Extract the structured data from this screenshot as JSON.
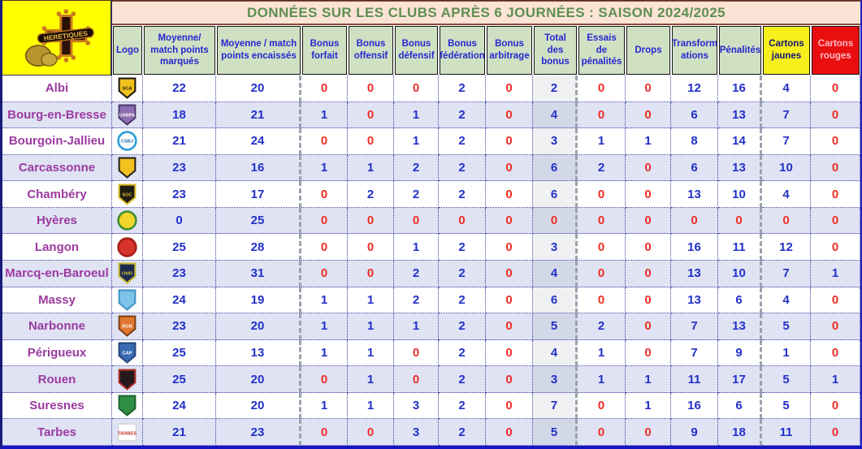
{
  "branding": {
    "label": "HERETIQUES"
  },
  "title": "DONNÉES SUR LES CLUBS APRÈS 6 JOURNÉES : SAISON 2024/2025",
  "colors": {
    "title_bg": "#fbe3d5",
    "title_text": "#5e8f52",
    "header_bg": "#cfe0c3",
    "header_text": "#2727cf",
    "cartons_jaunes_bg": "#f6ef1c",
    "cartons_rouges_bg": "#e90f0f",
    "row_alt_bg": "#dfe3f4",
    "value_blue": "#2230c8",
    "value_zero_red": "#ee2e24",
    "club_name_purple": "#9c3aa0",
    "brand_block_yellow": "#ffff00"
  },
  "columns": [
    {
      "key": "logo",
      "label": "Logo"
    },
    {
      "key": "moyenne-points-marques",
      "label": "Moyenne/ match points marqués"
    },
    {
      "key": "moyenne-points-encaisses",
      "label": "Moyenne / match points encaissés"
    },
    {
      "key": "bonus-forfait",
      "label": "Bonus forfait"
    },
    {
      "key": "bonus-offensif",
      "label": "Bonus offensif"
    },
    {
      "key": "bonus-defensif",
      "label": "Bonus défensif"
    },
    {
      "key": "bonus-federation",
      "label": "Bonus fédération"
    },
    {
      "key": "bonus-arbitrage",
      "label": "Bonus arbitrage"
    },
    {
      "key": "total-des-bonus",
      "label": "Total des bonus"
    },
    {
      "key": "essais-de-penalites",
      "label": "Essais de pénalités"
    },
    {
      "key": "drops",
      "label": "Drops"
    },
    {
      "key": "transformations",
      "label": "Transform\nations"
    },
    {
      "key": "penalites",
      "label": "Pénalités"
    },
    {
      "key": "cartons-jaunes",
      "label": "Cartons jaunes",
      "mod": "jaunes"
    },
    {
      "key": "cartons-rouges",
      "label": "Cartons rouges",
      "mod": "rouges"
    }
  ],
  "rows": [
    {
      "name": "Albi",
      "logo": {
        "type": "shield",
        "c1": "#f2c11e",
        "c2": "#1e1a10",
        "label": "SCA",
        "tc": "#1e1a10"
      },
      "values": [
        22,
        20,
        0,
        0,
        0,
        2,
        0,
        2,
        0,
        0,
        12,
        16,
        4,
        0
      ]
    },
    {
      "name": "Bourg-en-Bresse",
      "logo": {
        "type": "shield",
        "c1": "#8d6cb0",
        "c2": "#4d3a6e",
        "label": "USBPA",
        "tc": "#ffffff"
      },
      "values": [
        18,
        21,
        1,
        0,
        1,
        2,
        0,
        4,
        0,
        0,
        6,
        13,
        7,
        0
      ]
    },
    {
      "name": "Bourgoin-Jallieu",
      "logo": {
        "type": "circle",
        "c1": "#ffffff",
        "c2": "#2b9fd8",
        "label": "CSBJ",
        "tc": "#1a6ea8"
      },
      "values": [
        21,
        24,
        0,
        0,
        1,
        2,
        0,
        3,
        1,
        1,
        8,
        14,
        7,
        0
      ]
    },
    {
      "name": "Carcassonne",
      "logo": {
        "type": "shield",
        "c1": "#f2c11e",
        "c2": "#26221a",
        "label": "",
        "tc": "#26221a"
      },
      "values": [
        23,
        16,
        1,
        1,
        2,
        2,
        0,
        6,
        2,
        0,
        6,
        13,
        10,
        0
      ]
    },
    {
      "name": "Chambéry",
      "logo": {
        "type": "shield",
        "c1": "#211d12",
        "c2": "#d8b92a",
        "label": "SOC",
        "tc": "#d8b92a"
      },
      "values": [
        23,
        17,
        0,
        2,
        2,
        2,
        0,
        6,
        0,
        0,
        13,
        10,
        4,
        0
      ]
    },
    {
      "name": "Hyères",
      "logo": {
        "type": "circle",
        "c1": "#f2d52a",
        "c2": "#3f8f35",
        "label": "",
        "tc": "#3f8f35"
      },
      "values": [
        0,
        25,
        0,
        0,
        0,
        0,
        0,
        0,
        0,
        0,
        0,
        0,
        0,
        0
      ]
    },
    {
      "name": "Langon",
      "logo": {
        "type": "circle",
        "c1": "#d6332b",
        "c2": "#a81f18",
        "label": "",
        "tc": "#ffffff"
      },
      "values": [
        25,
        28,
        0,
        0,
        1,
        2,
        0,
        3,
        0,
        0,
        16,
        11,
        12,
        0
      ]
    },
    {
      "name": "Marcq-en-Baroeul",
      "logo": {
        "type": "shield",
        "c1": "#1d2b52",
        "c2": "#c3b92f",
        "label": "OMR",
        "tc": "#c3b92f"
      },
      "values": [
        23,
        31,
        0,
        0,
        2,
        2,
        0,
        4,
        0,
        0,
        13,
        10,
        7,
        1
      ]
    },
    {
      "name": "Massy",
      "logo": {
        "type": "shield",
        "c1": "#7fc3e8",
        "c2": "#3f93c4",
        "label": "",
        "tc": "#ffffff"
      },
      "values": [
        24,
        19,
        1,
        1,
        2,
        2,
        0,
        6,
        0,
        0,
        13,
        6,
        4,
        0
      ]
    },
    {
      "name": "Narbonne",
      "logo": {
        "type": "shield",
        "c1": "#e0762f",
        "c2": "#7c431c",
        "label": "RCN",
        "tc": "#ffffff"
      },
      "values": [
        23,
        20,
        1,
        1,
        1,
        2,
        0,
        5,
        2,
        0,
        7,
        13,
        5,
        0
      ]
    },
    {
      "name": "Périgueux",
      "logo": {
        "type": "shield",
        "c1": "#3a6cb4",
        "c2": "#24477c",
        "label": "CAP",
        "tc": "#ffffff"
      },
      "values": [
        25,
        13,
        1,
        1,
        0,
        2,
        0,
        4,
        1,
        0,
        7,
        9,
        1,
        0
      ]
    },
    {
      "name": "Rouen",
      "logo": {
        "type": "shield",
        "c1": "#241a1e",
        "c2": "#b03028",
        "label": "",
        "tc": "#ffffff"
      },
      "values": [
        25,
        20,
        0,
        1,
        0,
        2,
        0,
        3,
        1,
        1,
        11,
        17,
        5,
        1
      ]
    },
    {
      "name": "Suresnes",
      "logo": {
        "type": "shield",
        "c1": "#2f8f45",
        "c2": "#1d6330",
        "label": "",
        "tc": "#ffffff"
      },
      "values": [
        24,
        20,
        1,
        1,
        3,
        2,
        0,
        7,
        0,
        1,
        16,
        6,
        5,
        0
      ]
    },
    {
      "name": "Tarbes",
      "logo": {
        "type": "badge",
        "c1": "#ffffff",
        "c2": "#cccccc",
        "label": "TARBES",
        "tc": "#d03028"
      },
      "values": [
        21,
        23,
        0,
        0,
        3,
        2,
        0,
        5,
        0,
        0,
        9,
        18,
        11,
        0
      ]
    }
  ]
}
